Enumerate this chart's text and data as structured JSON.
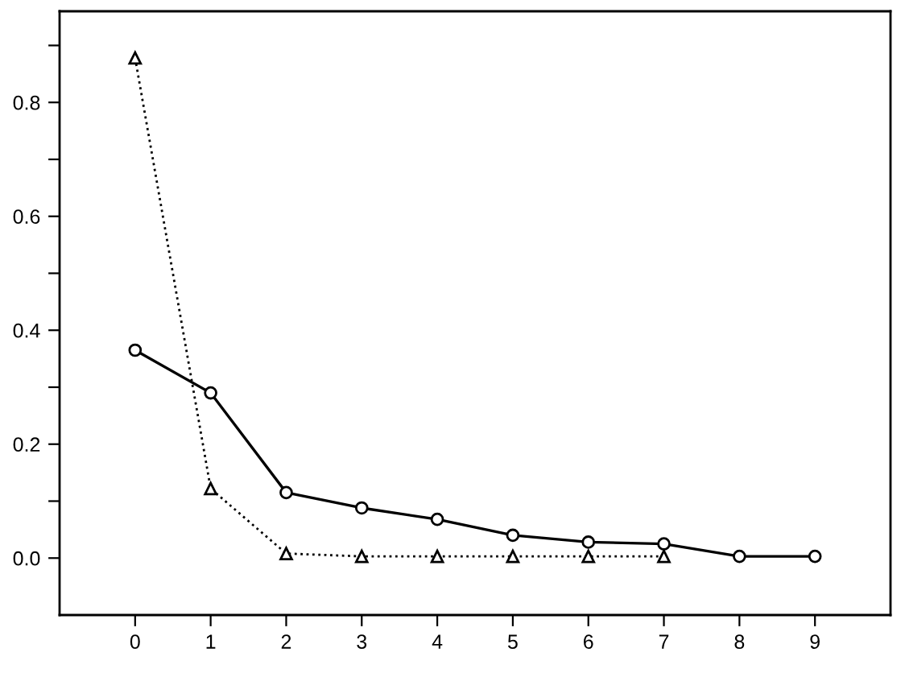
{
  "chart_data": {
    "type": "line",
    "x": [
      0,
      1,
      2,
      3,
      4,
      5,
      6,
      7,
      8,
      9
    ],
    "series": [
      {
        "color": "#000000",
        "values": [
          0.365,
          0.29,
          0.115,
          0.088,
          0.068,
          0.04,
          0.028,
          0.025,
          0.003,
          0.003
        ],
        "marker": "circle",
        "line_style": "solid"
      },
      {
        "color": "#000000",
        "values": [
          0.878,
          0.122,
          0.008,
          0.003,
          0.003,
          0.003,
          0.003,
          0.003,
          null,
          null
        ],
        "marker": "triangle",
        "line_style": "dotted"
      }
    ],
    "xlim": [
      -1,
      10
    ],
    "xticks": [
      0,
      1,
      2,
      3,
      4,
      5,
      6,
      7,
      8,
      9
    ],
    "ylim": [
      -0.1,
      0.96
    ],
    "yticks": [
      {
        "value": 0,
        "label": "0.0"
      },
      {
        "value": 0.1,
        "label": null
      },
      0.2,
      {
        "value": 0.3,
        "label": null
      },
      0.4,
      {
        "value": 0.5,
        "label": null
      },
      0.6,
      {
        "value": 0.7,
        "label": null
      },
      0.8,
      {
        "value": 0.9,
        "label": null
      }
    ],
    "grid": false,
    "legend": false
  }
}
